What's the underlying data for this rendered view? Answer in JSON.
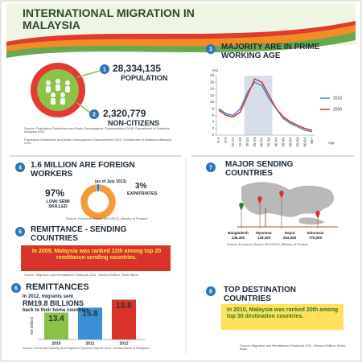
{
  "header": {
    "title": "INTERNATIONAL MIGRATION IN MALAYSIA"
  },
  "population": {
    "number": "1",
    "value": "28,334,135",
    "label": "POPULATION",
    "non_citizens_number": "2",
    "non_citizens_value": "2,320,779",
    "non_citizens_label": "NON-CITIZENS",
    "sources": [
      "Source: Population Distribution and Basic Demographic Characteristics 2000, Department of Statistics Malaysia 2001",
      "Population Distribution and Basic Demographic Characteristics 2010, Department of Statistics Malaysia 2010"
    ]
  },
  "age": {
    "number": "3",
    "title": "MAJORITY ARE IN PRIME WORKING AGE",
    "chart": {
      "type": "line",
      "y_label": "(%)",
      "x_label": "Age",
      "categories": [
        "0-4",
        "5-9",
        "10-14",
        "15-19",
        "20-24",
        "25-29",
        "30-34",
        "35-39",
        "40-44",
        "45-49",
        "50-54",
        "55-59",
        "60-64",
        "65+"
      ],
      "series": [
        {
          "name": "2010",
          "color": "#3a8fd6",
          "values": [
            8,
            6.5,
            6,
            8,
            13,
            16,
            15,
            11,
            8,
            5,
            3.5,
            2.5,
            1.5,
            1
          ]
        },
        {
          "name": "2000",
          "color": "#d9342b",
          "values": [
            7.5,
            6,
            5.5,
            7,
            12,
            17,
            16,
            12,
            8,
            5.5,
            4,
            3,
            2,
            1.5
          ]
        }
      ],
      "ylim": [
        0,
        18
      ],
      "yticks": [
        0,
        2,
        4,
        6,
        8,
        10,
        12,
        14,
        16,
        18
      ],
      "grid": false
    }
  },
  "workers": {
    "number": "4",
    "title": "1.6 MILLION ARE FOREIGN WORKERS",
    "note": "(as of July 2013)",
    "chart": {
      "type": "pie",
      "categories": [
        "LOW/ SEMI SKILLED",
        "EXPATRIATES"
      ],
      "values": [
        97,
        3
      ],
      "value_labels": [
        "97%",
        "3%"
      ],
      "colors": [
        "#f29b3a",
        "#2e75b6"
      ]
    },
    "source": "Source: Economic Report 2012/2013, Ministry of Finance"
  },
  "sending": {
    "number": "7",
    "title": "MAJOR SENDING COUNTRIES",
    "countries": [
      {
        "name": "Bangladesh",
        "value": "136,300"
      },
      {
        "name": "Myanmar",
        "value": "139,300"
      },
      {
        "name": "Nepal",
        "value": "253,300"
      },
      {
        "name": "Indonesia",
        "value": "776,000"
      }
    ],
    "source": "Source: Economic Report 2012/2013, Ministry of Finance"
  },
  "remittance_rank": {
    "number": "5",
    "title": "REMITTANCE - SENDING COUNTRIES",
    "text": "In 2009, Malaysia was ranked 11th among top 20 remittance-sending countries.",
    "source": "Source: Migration and Remittances Factbook 2011, Second Edition, World Bank"
  },
  "remittances": {
    "number": "6",
    "title": "REMITTANCES",
    "intro": "In 2012, migrants sent",
    "amount": "RM19.8 BILLIONS",
    "outro": "back to their home countries",
    "chart": {
      "type": "bar",
      "y_label": "RM (billion)",
      "categories": [
        "2010",
        "2011",
        "2012"
      ],
      "values": [
        13.4,
        15.8,
        19.8
      ],
      "colors": [
        "#8bc34a",
        "#3a8fd6",
        "#d9342b"
      ],
      "ylim": [
        0,
        20
      ]
    },
    "source": "Source: Financial Stability and Payment Systems Report 2012, Central Bank of Malaysia"
  },
  "destination": {
    "number": "8",
    "title": "TOP DESTINATION COUNTRIES",
    "text": "In 2010, Malaysia was ranked 20th among top 30 destination countries.",
    "source": "Source: Migration and Remittances Factbook 2011, Second Edition, World Bank"
  }
}
